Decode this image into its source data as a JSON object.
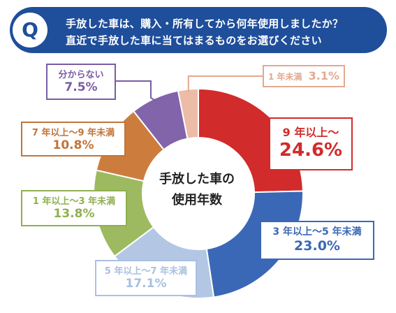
{
  "question": {
    "badge": "Q",
    "line1": "手放した車は、購入・所有してから何年使用しましたか？",
    "line2": "直近で手放した車に当てはまるものをお選びください"
  },
  "center": {
    "line1": "手放した車の",
    "line2": "使用年数"
  },
  "chart_data": {
    "type": "pie",
    "title": "",
    "categories": [
      "9年以上～",
      "3年以上～5年未満",
      "5年以上～7年未満",
      "1年以上～3年未満",
      "7年以上～9年未満",
      "分からない",
      "1年未満"
    ],
    "values": [
      24.6,
      23.0,
      17.1,
      13.8,
      10.8,
      7.5,
      3.1
    ],
    "value_labels": [
      "24.6%",
      "23.0%",
      "17.1%",
      "13.8%",
      "10.8%",
      "7.5%",
      "3.1%"
    ],
    "colors": [
      "#d22b2b",
      "#3b68b6",
      "#b3c7e4",
      "#9dba60",
      "#cc7d3e",
      "#8264ab",
      "#ecbca7"
    ],
    "start_angle": 0,
    "direction": "clockwise",
    "donut": true
  },
  "labels": [
    {
      "cat": "9 年以上～",
      "val": "24.6%",
      "color": "#d22b2b"
    },
    {
      "cat": "3 年以上～5 年未満",
      "val": "23.0%",
      "color": "#3b68b6"
    },
    {
      "cat": "5 年以上～7 年未満",
      "val": "17.1%",
      "color": "#a9c0e0"
    },
    {
      "cat": "1 年以上～3 年未満",
      "val": "13.8%",
      "color": "#8fb050"
    },
    {
      "cat": "7 年以上～9 年未満",
      "val": "10.8%",
      "color": "#c0743a"
    },
    {
      "cat": "分からない",
      "val": "7.5%",
      "color": "#7a5ca5"
    },
    {
      "cat": "1 年未満",
      "val": "3.1%",
      "color": "#e3a98f"
    }
  ]
}
